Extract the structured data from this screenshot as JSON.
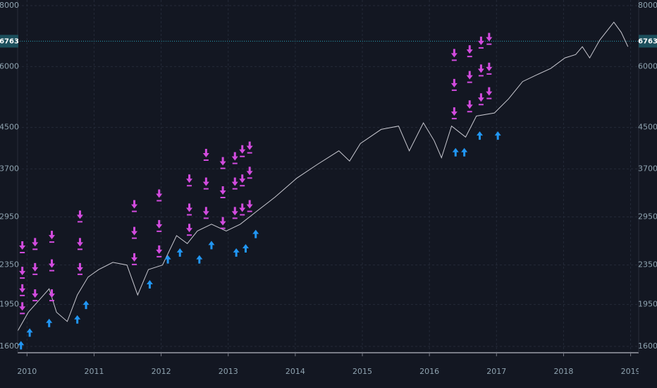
{
  "chart_data": {
    "type": "line",
    "log_scale": true,
    "grid": true,
    "xlim": [
      2009.86,
      2019.12
    ],
    "ylim": [
      1553,
      8216
    ],
    "xticks": [
      2010,
      2011,
      2012,
      2013,
      2014,
      2015,
      2016,
      2017,
      2018,
      2019
    ],
    "yticks": [
      1600,
      1950,
      2350,
      2950,
      3700,
      4500,
      6000,
      8000
    ],
    "price_line": 6763,
    "series": [
      {
        "color": "#c8c8d0",
        "style": "line",
        "x": [
          2009.86,
          2010.02,
          2010.18,
          2010.33,
          2010.44,
          2010.6,
          2010.75,
          2010.91,
          2011.07,
          2011.28,
          2011.49,
          2011.65,
          2011.81,
          2012.02,
          2012.23,
          2012.39,
          2012.54,
          2012.75,
          2012.97,
          2013.18,
          2013.44,
          2013.7,
          2014.02,
          2014.33,
          2014.65,
          2014.81,
          2014.97,
          2015.28,
          2015.54,
          2015.7,
          2015.91,
          2016.07,
          2016.18,
          2016.33,
          2016.54,
          2016.7,
          2016.97,
          2017.18,
          2017.39,
          2017.6,
          2017.81,
          2018.02,
          2018.18,
          2018.28,
          2018.39,
          2018.54,
          2018.75,
          2018.86,
          2018.96
        ],
        "values": [
          1720,
          1880,
          1990,
          2100,
          1880,
          1800,
          2040,
          2220,
          2300,
          2380,
          2350,
          2040,
          2300,
          2350,
          2700,
          2600,
          2760,
          2850,
          2760,
          2850,
          3040,
          3240,
          3540,
          3780,
          4030,
          3840,
          4170,
          4460,
          4530,
          4030,
          4600,
          4230,
          3900,
          4530,
          4300,
          4750,
          4820,
          5150,
          5590,
          5770,
          5950,
          6250,
          6350,
          6590,
          6250,
          6800,
          7400,
          7050,
          6590
        ]
      },
      {
        "color": "#d24bde",
        "style": "down-arrow",
        "x": [
          2009.93,
          2009.93,
          2009.93,
          2009.93,
          2010.12,
          2010.12,
          2010.12,
          2010.37,
          2010.37,
          2010.37,
          2010.79,
          2010.79,
          2010.79,
          2011.6,
          2011.6,
          2011.6,
          2011.97,
          2011.97,
          2011.97,
          2012.42,
          2012.42,
          2012.42,
          2012.67,
          2012.67,
          2012.67,
          2012.92,
          2012.92,
          2012.92,
          2013.1,
          2013.1,
          2013.1,
          2013.21,
          2013.21,
          2013.21,
          2013.32,
          2013.32,
          2013.32,
          2016.37,
          2016.37,
          2016.37,
          2016.6,
          2016.6,
          2016.6,
          2016.77,
          2016.77,
          2016.77,
          2016.89,
          2016.89,
          2016.89
        ],
        "values": [
          2560,
          2270,
          2090,
          1920,
          2600,
          2310,
          2040,
          2690,
          2350,
          2040,
          2960,
          2600,
          2310,
          3110,
          2740,
          2420,
          3270,
          2830,
          2510,
          3510,
          3060,
          2780,
          3960,
          3460,
          3010,
          3810,
          3320,
          2870,
          3900,
          3460,
          3010,
          4030,
          3510,
          3060,
          4100,
          3640,
          3110,
          6350,
          5510,
          4820,
          6460,
          5720,
          4980,
          6730,
          5900,
          5150,
          6850,
          5950,
          5300
        ]
      },
      {
        "color": "#2196f3",
        "style": "up-arrow",
        "x": [
          2009.91,
          2010.04,
          2010.33,
          2010.75,
          2010.88,
          2011.83,
          2012.1,
          2012.28,
          2012.57,
          2012.75,
          2013.12,
          2013.26,
          2013.41,
          2016.39,
          2016.52,
          2016.75,
          2017.02
        ],
        "values": [
          1620,
          1720,
          1800,
          1830,
          1960,
          2160,
          2430,
          2510,
          2430,
          2600,
          2510,
          2560,
          2740,
          4030,
          4030,
          4360,
          4360
        ]
      }
    ]
  }
}
